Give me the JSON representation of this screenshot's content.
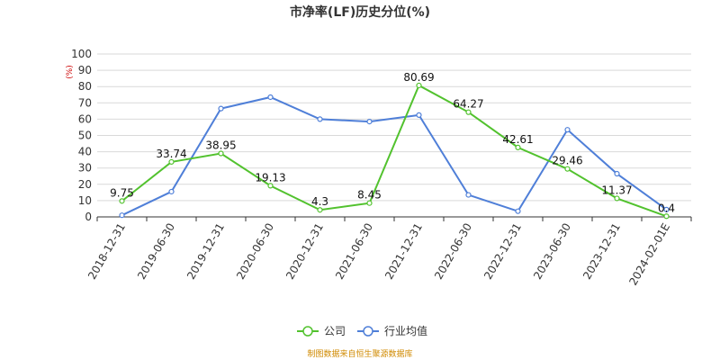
{
  "chart_data": {
    "type": "line",
    "title": "市净率(LF)历史分位(%)",
    "y_unit": "(%)",
    "ylim": [
      0,
      100
    ],
    "y_ticks": [
      0,
      10,
      20,
      30,
      40,
      50,
      60,
      70,
      80,
      90,
      100
    ],
    "categories": [
      "2018-12-31",
      "2019-06-30",
      "2019-12-31",
      "2020-06-30",
      "2020-12-31",
      "2021-06-30",
      "2021-12-31",
      "2022-06-30",
      "2022-12-31",
      "2023-06-30",
      "2023-12-31",
      "2024-02-01E"
    ],
    "series": [
      {
        "name": "公司",
        "color": "#52c22e",
        "values": [
          9.75,
          33.74,
          38.95,
          19.13,
          4.3,
          8.45,
          80.69,
          64.27,
          42.61,
          29.46,
          11.37,
          0.4
        ],
        "labels": [
          "9.75",
          "33.74",
          "38.95",
          "19.13",
          "4.3",
          "8.45",
          "80.69",
          "64.27",
          "42.61",
          "29.46",
          "11.37",
          "0.4"
        ]
      },
      {
        "name": "行业均值",
        "color": "#4f7fd8",
        "values": [
          1,
          15.5,
          66.5,
          73.5,
          60,
          58.5,
          62.5,
          13.5,
          3.5,
          53.5,
          26.5,
          4.5
        ]
      }
    ],
    "grid": true,
    "legend": "bottom-center"
  },
  "source_note": "制图数据来自恒生聚源数据库"
}
